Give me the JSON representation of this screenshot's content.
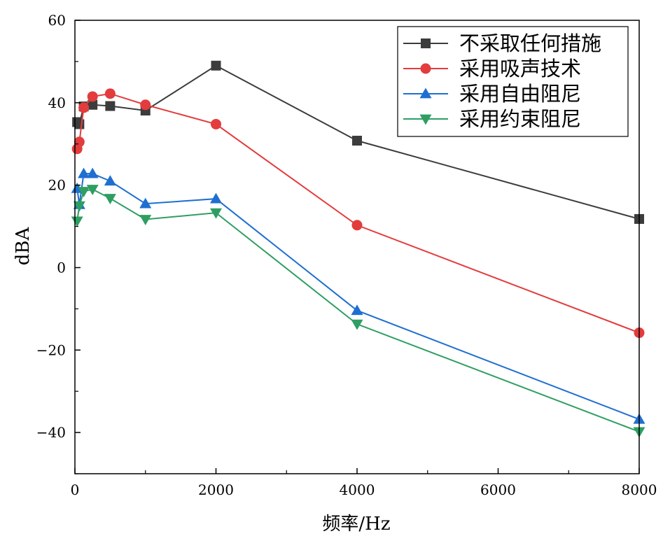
{
  "chart_data": {
    "type": "line",
    "xlabel": "频率/Hz",
    "ylabel": "dBA",
    "xlim": [
      0,
      8000
    ],
    "ylim": [
      -50,
      60
    ],
    "x_ticks": [
      0,
      2000,
      4000,
      6000,
      8000
    ],
    "x_tick_labels": [
      "0",
      "2000",
      "4000",
      "6000",
      "8000"
    ],
    "y_ticks": [
      -40,
      -20,
      0,
      20,
      40,
      60
    ],
    "y_tick_labels": [
      "−40",
      "−20",
      "0",
      "20",
      "40",
      "60"
    ],
    "grid": false,
    "legend_position": "top-right",
    "series": [
      {
        "name": "不采取任何措施",
        "color": "#3c3c3c",
        "marker": "square",
        "x": [
          31.5,
          63,
          125,
          250,
          500,
          1000,
          2000,
          4000,
          8000
        ],
        "y": [
          35.3,
          34.8,
          39.1,
          39.5,
          39.2,
          38.1,
          49.0,
          30.8,
          11.8
        ]
      },
      {
        "name": "采用吸声技术",
        "color": "#e33c3c",
        "marker": "circle",
        "x": [
          31.5,
          63,
          125,
          250,
          500,
          1000,
          2000,
          4000,
          8000
        ],
        "y": [
          28.8,
          30.5,
          38.8,
          41.5,
          42.2,
          39.5,
          34.8,
          10.3,
          -15.8
        ]
      },
      {
        "name": "采用自由阻尼",
        "color": "#1f6fd1",
        "marker": "triangle-up",
        "x": [
          31.5,
          63,
          125,
          250,
          500,
          1000,
          2000,
          4000,
          8000
        ],
        "y": [
          19.2,
          15.3,
          22.8,
          22.8,
          21.0,
          15.5,
          16.7,
          -10.4,
          -36.8
        ]
      },
      {
        "name": "采用约束阻尼",
        "color": "#2e9e63",
        "marker": "triangle-down",
        "x": [
          31.5,
          63,
          125,
          250,
          500,
          1000,
          2000,
          4000,
          8000
        ],
        "y": [
          11.3,
          15.0,
          18.5,
          19.0,
          16.8,
          11.7,
          13.3,
          -13.7,
          -39.8
        ]
      }
    ]
  }
}
